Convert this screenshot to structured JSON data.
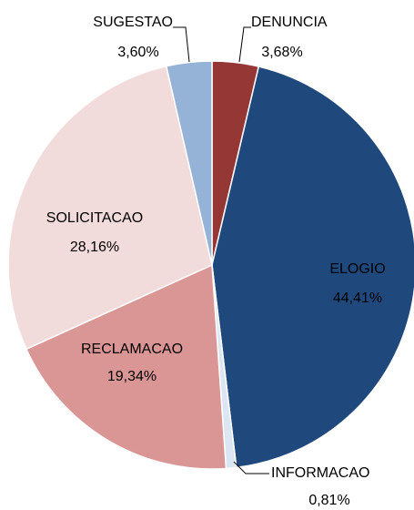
{
  "chart_data": {
    "type": "pie",
    "categories": [
      "DENUNCIA",
      "ELOGIO",
      "INFORMACAO",
      "RECLAMACAO",
      "SOLICITACAO",
      "SUGESTAO"
    ],
    "values": [
      3.68,
      44.41,
      0.81,
      19.34,
      28.16,
      3.6
    ],
    "value_labels": [
      "3,68%",
      "44,41%",
      "0,81%",
      "19,34%",
      "28,16%",
      "3,60%"
    ],
    "colors": [
      "#953735",
      "#1f497d",
      "#dce6f2",
      "#d99694",
      "#f2dcdb",
      "#95b3d7"
    ]
  }
}
